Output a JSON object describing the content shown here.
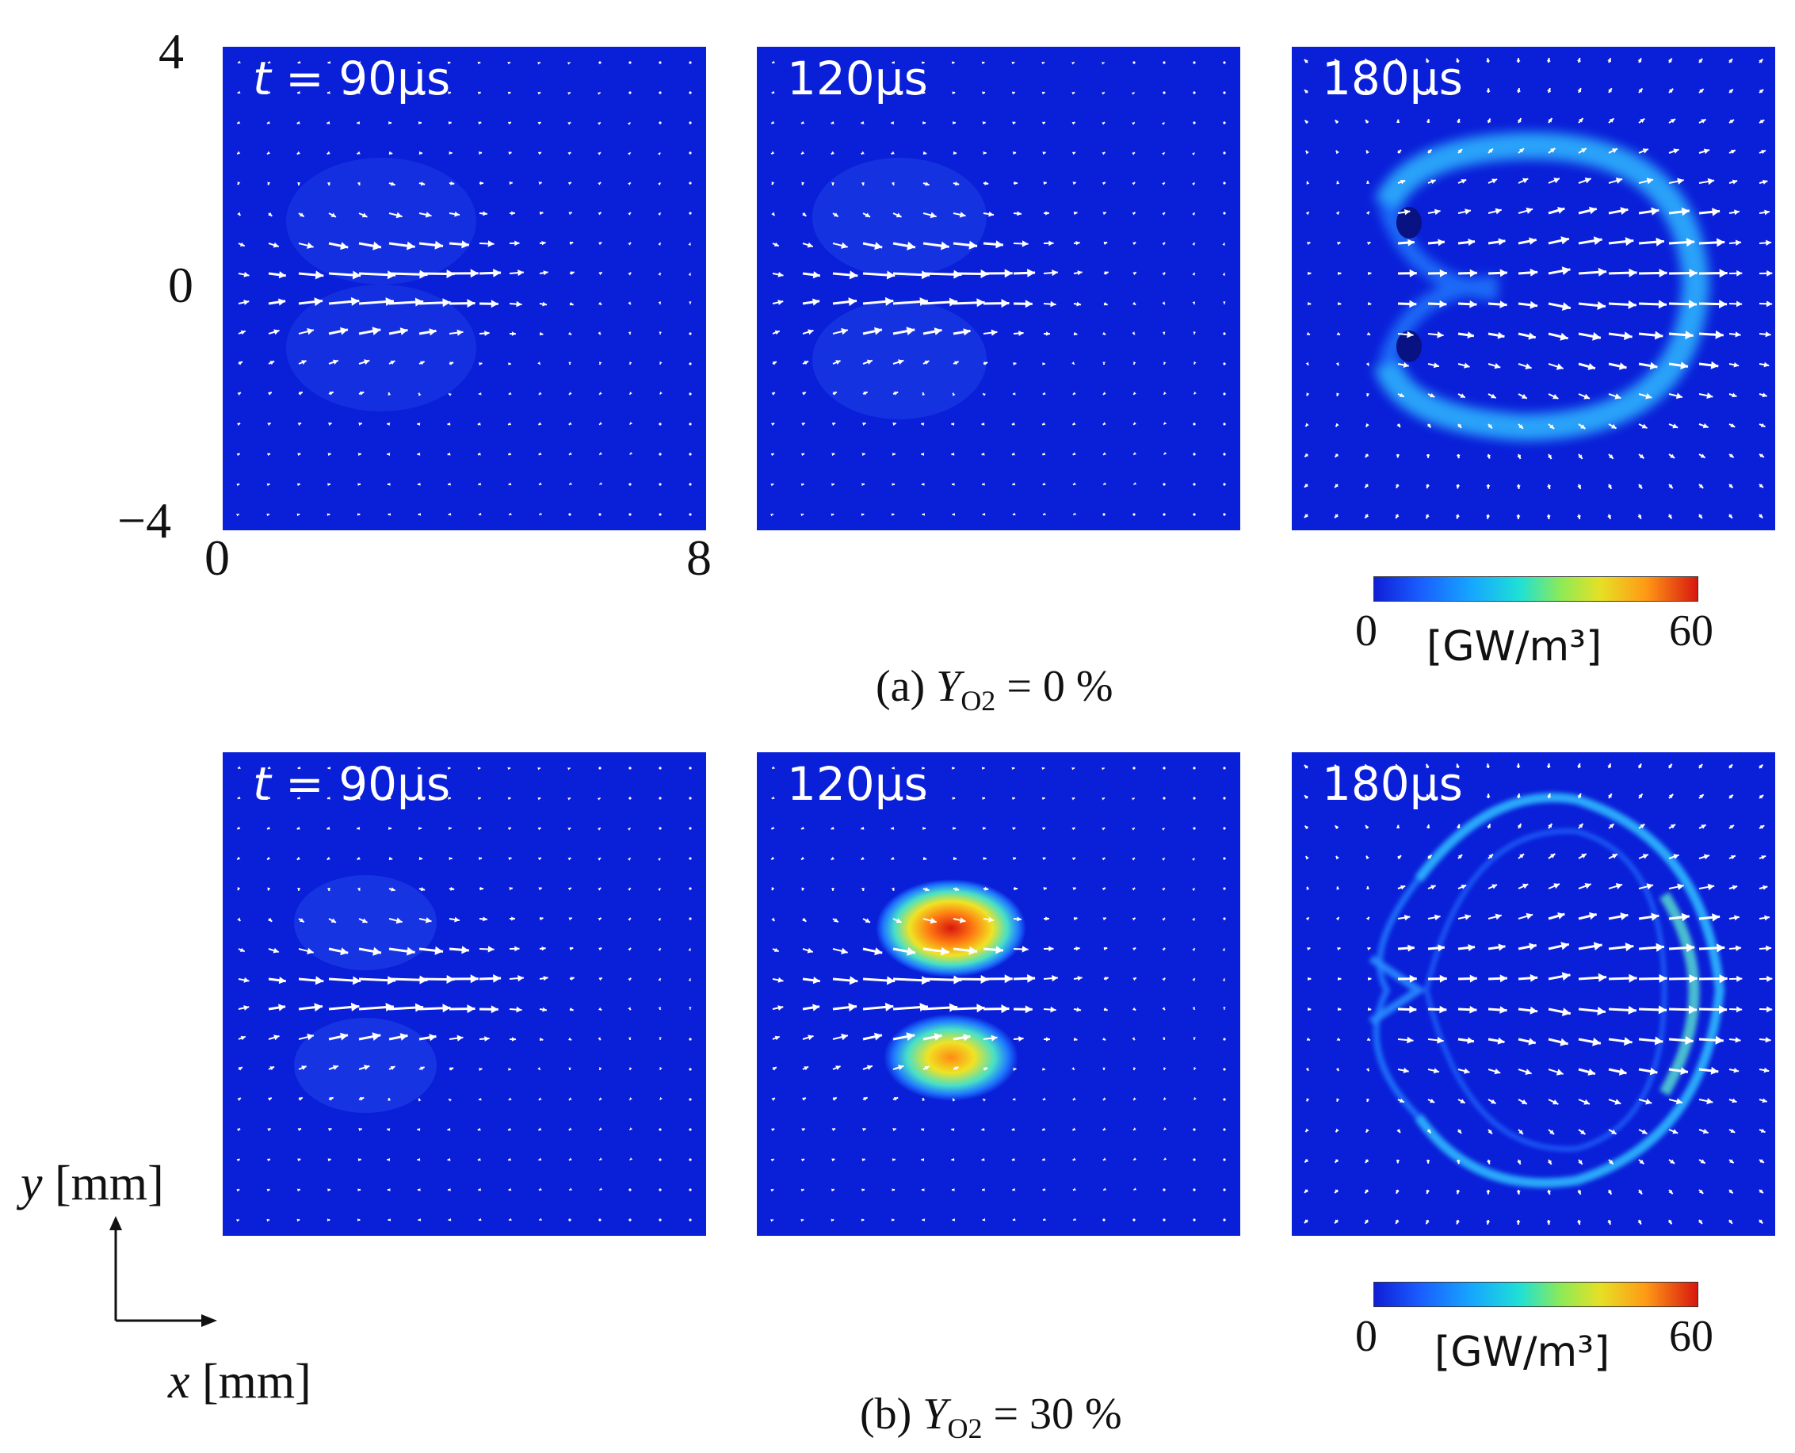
{
  "figure": {
    "time_prefix": "t = ",
    "rows": [
      {
        "caption": {
          "prefix": "(a) ",
          "var": "Y",
          "sub": "O2",
          "rest": " = 0 %"
        },
        "panels": [
          {
            "time": "90μs",
            "show_t": true,
            "pattern": "early"
          },
          {
            "time": "120μs",
            "show_t": false,
            "pattern": "early"
          },
          {
            "time": "180μs",
            "show_t": false,
            "pattern": "ring"
          }
        ],
        "colorbar": {
          "min": "0",
          "max": "60",
          "unit": "[GW/m³]"
        }
      },
      {
        "caption": {
          "prefix": "(b) ",
          "var": "Y",
          "sub": "O2",
          "rest": " = 30 %"
        },
        "panels": [
          {
            "time": "90μs",
            "show_t": true,
            "pattern": "early"
          },
          {
            "time": "120μs",
            "show_t": false,
            "pattern": "hot"
          },
          {
            "time": "180μs",
            "show_t": false,
            "pattern": "thin-ring"
          }
        ],
        "colorbar": {
          "min": "0",
          "max": "60",
          "unit": "[GW/m³]"
        }
      }
    ],
    "axes": {
      "y_ticks": [
        "4",
        "0",
        "−4"
      ],
      "x_ticks": [
        "0",
        "8"
      ],
      "x_label": {
        "var": "x",
        "unit": " [mm]"
      },
      "y_label": {
        "var": "y",
        "unit": " [mm]"
      }
    },
    "colors": {
      "field_bg": "#0a1fd8",
      "arrow": "#ffffff",
      "ring_color": "#2fb8ff",
      "hot_core": "#d8170f"
    }
  }
}
